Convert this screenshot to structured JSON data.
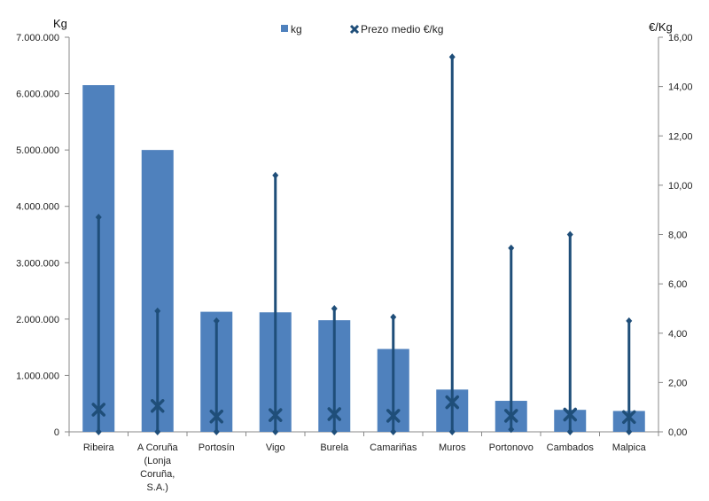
{
  "chart_data": {
    "type": "bar",
    "categories": [
      [
        "Ribeira"
      ],
      [
        "A Coruña",
        "(Lonja",
        "Coruña,",
        "S.A.)"
      ],
      [
        "Portosín"
      ],
      [
        "Vigo"
      ],
      [
        "Burela"
      ],
      [
        "Camariñas"
      ],
      [
        "Muros"
      ],
      [
        "Portonovo"
      ],
      [
        "Cambados"
      ],
      [
        "Malpica"
      ]
    ],
    "series": [
      {
        "name": "kg",
        "axis": "left",
        "type": "bar",
        "color": "#4F81BD",
        "values": [
          6150000,
          5000000,
          2130000,
          2120000,
          1980000,
          1470000,
          750000,
          550000,
          390000,
          370000
        ]
      },
      {
        "name": "Prezo medio €/kg",
        "axis": "right",
        "type": "marker-range",
        "color": "#1F4E79",
        "values": [
          0.9,
          1.05,
          0.62,
          0.68,
          0.72,
          0.65,
          1.2,
          0.65,
          0.7,
          0.6
        ],
        "max": [
          8.7,
          4.9,
          4.5,
          10.4,
          5.0,
          4.65,
          15.2,
          7.45,
          8.0,
          4.5
        ],
        "min": [
          0,
          0,
          0,
          0,
          0,
          0,
          0,
          0.1,
          0,
          0
        ]
      }
    ],
    "left_axis": {
      "label": "Kg",
      "ylim": [
        0,
        7000000
      ],
      "ticks": [
        0,
        1000000,
        2000000,
        3000000,
        4000000,
        5000000,
        6000000,
        7000000
      ],
      "tick_labels": [
        "0",
        "1.000.000",
        "2.000.000",
        "3.000.000",
        "4.000.000",
        "5.000.000",
        "6.000.000",
        "7.000.000"
      ]
    },
    "right_axis": {
      "label": "€/Kg",
      "ylim": [
        0,
        16
      ],
      "ticks": [
        0,
        2,
        4,
        6,
        8,
        10,
        12,
        14,
        16
      ],
      "tick_labels": [
        "0,00",
        "2,00",
        "4,00",
        "6,00",
        "8,00",
        "10,00",
        "12,00",
        "14,00",
        "16,00"
      ]
    },
    "legend": {
      "position": "top",
      "labels": [
        "kg",
        "Prezo medio €/kg"
      ]
    },
    "grid": false
  }
}
